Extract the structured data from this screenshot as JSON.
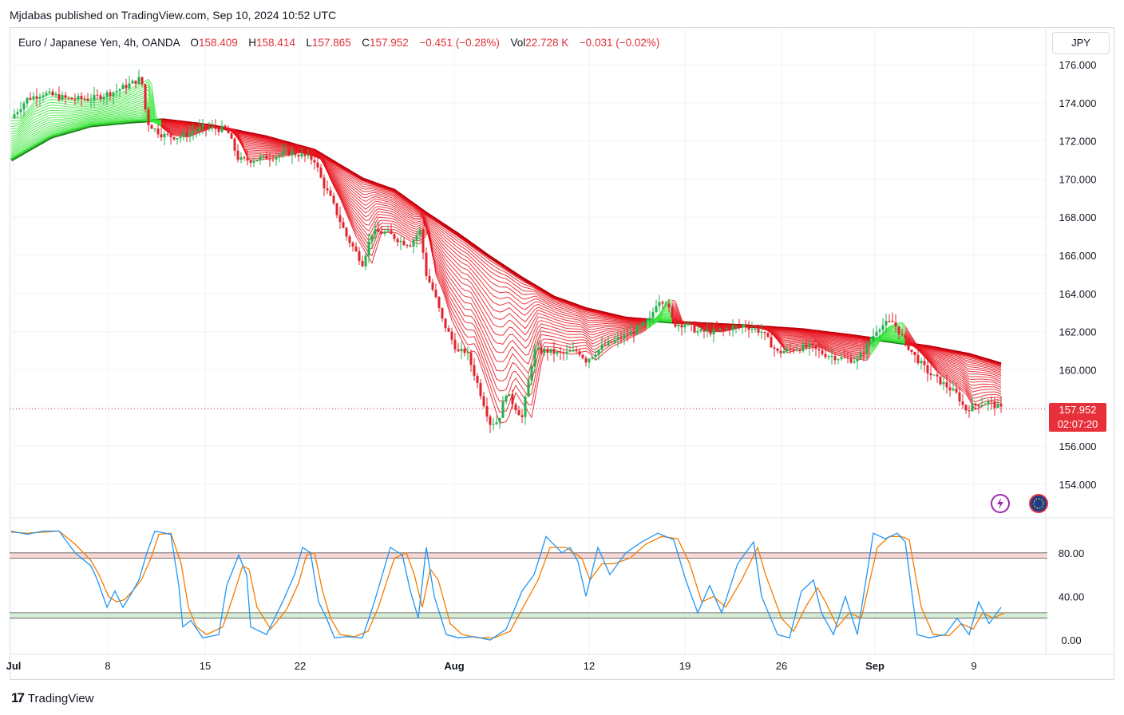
{
  "header": {
    "published_text": "Mjdabas published on TradingView.com, Sep 10, 2024 10:52 UTC"
  },
  "legend": {
    "symbol": "Euro / Japanese Yen, 4h, OANDA",
    "o_label": "O",
    "o_value": "158.409",
    "h_label": "H",
    "h_value": "158.414",
    "l_label": "L",
    "l_value": "157.865",
    "c_label": "C",
    "c_value": "157.952",
    "change": "−0.451 (−0.28%)",
    "vol_label": "Vol",
    "vol_value": "22.728 K",
    "vol_change": "−0.031 (−0.02%)"
  },
  "currency_button": "JPY",
  "price_axis": [
    "176.000",
    "174.000",
    "172.000",
    "170.000",
    "168.000",
    "166.000",
    "164.000",
    "162.000",
    "160.000",
    "156.000",
    "154.000"
  ],
  "last_price_tag": {
    "price": "157.952",
    "countdown": "02:07:20"
  },
  "oscillator_axis": [
    "80.00",
    "40.00",
    "0.00"
  ],
  "time_axis": [
    "Jul",
    "8",
    "15",
    "22",
    "Aug",
    "12",
    "19",
    "26",
    "Sep",
    "9"
  ],
  "footer": {
    "brand": "TradingView",
    "logo_mark": "17"
  },
  "icons": {
    "flash": "flash-icon",
    "globe": "globe-icon"
  },
  "colors": {
    "bull": "#22b24c",
    "bear": "#e0232c",
    "ribbon_green": "#39e639",
    "ribbon_red": "#e8121c",
    "stoch_k": "#2196f3",
    "stoch_d": "#f57c00",
    "overbought_band": "#f8d7d7",
    "oversold_band": "#d6ecd6",
    "last_price": "#e8303a"
  },
  "chart_data": {
    "type": "candlestick",
    "symbol": "EURJPY",
    "timeframe": "4h",
    "ylim": [
      153,
      177
    ],
    "price_path": [
      [
        0,
        173.2
      ],
      [
        8,
        173.6
      ],
      [
        20,
        174.2
      ],
      [
        40,
        174.5
      ],
      [
        70,
        174.2
      ],
      [
        100,
        174.2
      ],
      [
        130,
        174.6
      ],
      [
        150,
        175.0
      ],
      [
        163,
        175.3
      ],
      [
        170,
        173.0
      ],
      [
        180,
        172.6
      ],
      [
        190,
        172.3
      ],
      [
        210,
        172.2
      ],
      [
        240,
        172.7
      ],
      [
        270,
        172.6
      ],
      [
        285,
        171.0
      ],
      [
        300,
        171.0
      ],
      [
        330,
        171.2
      ],
      [
        350,
        171.4
      ],
      [
        360,
        171.3
      ],
      [
        380,
        171.0
      ],
      [
        390,
        169.8
      ],
      [
        400,
        169.0
      ],
      [
        420,
        167.0
      ],
      [
        440,
        165.6
      ],
      [
        452,
        167.2
      ],
      [
        470,
        167.2
      ],
      [
        490,
        166.7
      ],
      [
        500,
        166.6
      ],
      [
        512,
        167.3
      ],
      [
        520,
        165.0
      ],
      [
        530,
        164.0
      ],
      [
        540,
        162.6
      ],
      [
        560,
        160.9
      ],
      [
        570,
        161.0
      ],
      [
        580,
        159.8
      ],
      [
        600,
        157.2
      ],
      [
        610,
        157.3
      ],
      [
        620,
        158.8
      ],
      [
        640,
        157.5
      ],
      [
        655,
        161.0
      ],
      [
        670,
        161.0
      ],
      [
        690,
        160.8
      ],
      [
        710,
        161.0
      ],
      [
        720,
        160.5
      ],
      [
        740,
        161.2
      ],
      [
        760,
        161.6
      ],
      [
        780,
        162.0
      ],
      [
        800,
        162.6
      ],
      [
        810,
        163.7
      ],
      [
        820,
        163.6
      ],
      [
        830,
        162.4
      ],
      [
        845,
        162.4
      ],
      [
        860,
        162.0
      ],
      [
        880,
        162.0
      ],
      [
        900,
        162.2
      ],
      [
        920,
        162.3
      ],
      [
        940,
        162.0
      ],
      [
        960,
        160.9
      ],
      [
        980,
        161.1
      ],
      [
        1000,
        161.2
      ],
      [
        1020,
        160.8
      ],
      [
        1040,
        160.6
      ],
      [
        1060,
        160.5
      ],
      [
        1075,
        161.4
      ],
      [
        1085,
        162.2
      ],
      [
        1095,
        162.4
      ],
      [
        1105,
        162.5
      ],
      [
        1115,
        161.8
      ],
      [
        1130,
        160.8
      ],
      [
        1150,
        159.8
      ],
      [
        1170,
        159.2
      ],
      [
        1185,
        158.7
      ],
      [
        1195,
        157.9
      ],
      [
        1210,
        158.2
      ],
      [
        1225,
        158.3
      ],
      [
        1240,
        157.952
      ]
    ],
    "ribbon": {
      "slow_ema_path": [
        [
          0,
          171.0
        ],
        [
          50,
          172.2
        ],
        [
          100,
          172.8
        ],
        [
          150,
          173.0
        ],
        [
          190,
          173.1
        ],
        [
          250,
          172.8
        ],
        [
          320,
          172.2
        ],
        [
          380,
          171.5
        ],
        [
          440,
          170.0
        ],
        [
          480,
          169.4
        ],
        [
          520,
          168.2
        ],
        [
          560,
          167.1
        ],
        [
          600,
          165.9
        ],
        [
          640,
          164.8
        ],
        [
          680,
          163.8
        ],
        [
          720,
          163.2
        ],
        [
          770,
          162.7
        ],
        [
          830,
          162.5
        ],
        [
          870,
          162.4
        ],
        [
          920,
          162.3
        ],
        [
          990,
          162.1
        ],
        [
          1050,
          161.8
        ],
        [
          1100,
          161.5
        ],
        [
          1150,
          161.2
        ],
        [
          1200,
          160.8
        ],
        [
          1240,
          160.3
        ]
      ]
    },
    "stochastic": {
      "ylim": [
        -5,
        105
      ],
      "bands": {
        "overbought": [
          75,
          80
        ],
        "oversold": [
          20,
          25
        ]
      },
      "k": [
        [
          0,
          100
        ],
        [
          20,
          97
        ],
        [
          40,
          100
        ],
        [
          60,
          100
        ],
        [
          80,
          80
        ],
        [
          100,
          68
        ],
        [
          108,
          55
        ],
        [
          120,
          30
        ],
        [
          130,
          45
        ],
        [
          140,
          30
        ],
        [
          150,
          42
        ],
        [
          160,
          55
        ],
        [
          170,
          80
        ],
        [
          180,
          100
        ],
        [
          200,
          97
        ],
        [
          210,
          50
        ],
        [
          215,
          12
        ],
        [
          225,
          18
        ],
        [
          240,
          2
        ],
        [
          260,
          5
        ],
        [
          270,
          50
        ],
        [
          285,
          78
        ],
        [
          295,
          60
        ],
        [
          300,
          12
        ],
        [
          320,
          5
        ],
        [
          340,
          35
        ],
        [
          355,
          60
        ],
        [
          365,
          85
        ],
        [
          375,
          80
        ],
        [
          385,
          35
        ],
        [
          395,
          20
        ],
        [
          405,
          2
        ],
        [
          420,
          3
        ],
        [
          440,
          2
        ],
        [
          455,
          35
        ],
        [
          475,
          85
        ],
        [
          490,
          78
        ],
        [
          500,
          45
        ],
        [
          510,
          20
        ],
        [
          520,
          85
        ],
        [
          530,
          40
        ],
        [
          545,
          5
        ],
        [
          560,
          2
        ],
        [
          580,
          3
        ],
        [
          600,
          0
        ],
        [
          620,
          10
        ],
        [
          640,
          45
        ],
        [
          655,
          60
        ],
        [
          670,
          95
        ],
        [
          690,
          80
        ],
        [
          700,
          85
        ],
        [
          710,
          72
        ],
        [
          720,
          40
        ],
        [
          735,
          85
        ],
        [
          750,
          60
        ],
        [
          770,
          80
        ],
        [
          790,
          90
        ],
        [
          810,
          98
        ],
        [
          830,
          92
        ],
        [
          845,
          55
        ],
        [
          860,
          25
        ],
        [
          875,
          50
        ],
        [
          890,
          25
        ],
        [
          910,
          70
        ],
        [
          930,
          90
        ],
        [
          940,
          40
        ],
        [
          960,
          5
        ],
        [
          975,
          2
        ],
        [
          990,
          45
        ],
        [
          1005,
          55
        ],
        [
          1015,
          25
        ],
        [
          1030,
          5
        ],
        [
          1045,
          40
        ],
        [
          1060,
          5
        ],
        [
          1080,
          98
        ],
        [
          1095,
          93
        ],
        [
          1110,
          98
        ],
        [
          1120,
          90
        ],
        [
          1135,
          5
        ],
        [
          1150,
          2
        ],
        [
          1170,
          5
        ],
        [
          1185,
          20
        ],
        [
          1200,
          5
        ],
        [
          1212,
          35
        ],
        [
          1225,
          15
        ],
        [
          1240,
          30
        ]
      ],
      "d": [
        [
          0,
          99
        ],
        [
          20,
          98
        ],
        [
          40,
          99
        ],
        [
          60,
          100
        ],
        [
          80,
          88
        ],
        [
          100,
          73
        ],
        [
          110,
          60
        ],
        [
          122,
          40
        ],
        [
          132,
          35
        ],
        [
          142,
          37
        ],
        [
          152,
          45
        ],
        [
          163,
          55
        ],
        [
          175,
          75
        ],
        [
          185,
          97
        ],
        [
          200,
          98
        ],
        [
          213,
          70
        ],
        [
          222,
          30
        ],
        [
          232,
          12
        ],
        [
          245,
          5
        ],
        [
          265,
          12
        ],
        [
          278,
          40
        ],
        [
          290,
          68
        ],
        [
          298,
          65
        ],
        [
          308,
          30
        ],
        [
          325,
          10
        ],
        [
          345,
          28
        ],
        [
          360,
          52
        ],
        [
          370,
          78
        ],
        [
          380,
          80
        ],
        [
          390,
          45
        ],
        [
          400,
          20
        ],
        [
          412,
          5
        ],
        [
          430,
          3
        ],
        [
          447,
          8
        ],
        [
          460,
          30
        ],
        [
          480,
          75
        ],
        [
          495,
          80
        ],
        [
          505,
          60
        ],
        [
          515,
          30
        ],
        [
          525,
          65
        ],
        [
          535,
          55
        ],
        [
          550,
          15
        ],
        [
          565,
          5
        ],
        [
          585,
          2
        ],
        [
          605,
          2
        ],
        [
          625,
          8
        ],
        [
          645,
          35
        ],
        [
          660,
          55
        ],
        [
          675,
          85
        ],
        [
          695,
          85
        ],
        [
          705,
          80
        ],
        [
          715,
          75
        ],
        [
          725,
          55
        ],
        [
          740,
          70
        ],
        [
          755,
          70
        ],
        [
          775,
          75
        ],
        [
          795,
          88
        ],
        [
          815,
          95
        ],
        [
          835,
          93
        ],
        [
          850,
          70
        ],
        [
          865,
          35
        ],
        [
          880,
          40
        ],
        [
          895,
          30
        ],
        [
          915,
          55
        ],
        [
          935,
          85
        ],
        [
          945,
          60
        ],
        [
          965,
          20
        ],
        [
          980,
          8
        ],
        [
          995,
          30
        ],
        [
          1010,
          48
        ],
        [
          1020,
          35
        ],
        [
          1035,
          12
        ],
        [
          1050,
          25
        ],
        [
          1065,
          20
        ],
        [
          1085,
          85
        ],
        [
          1100,
          95
        ],
        [
          1115,
          95
        ],
        [
          1125,
          92
        ],
        [
          1140,
          30
        ],
        [
          1155,
          5
        ],
        [
          1175,
          4
        ],
        [
          1190,
          15
        ],
        [
          1205,
          10
        ],
        [
          1217,
          25
        ],
        [
          1230,
          20
        ],
        [
          1245,
          25
        ]
      ]
    }
  }
}
